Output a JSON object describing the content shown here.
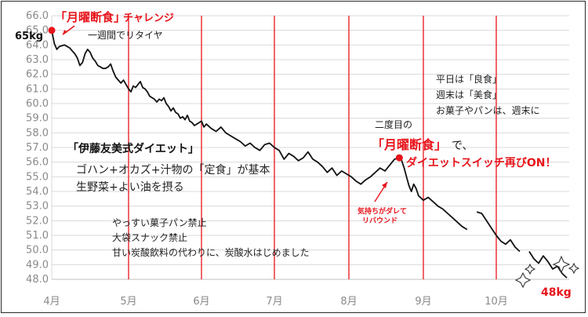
{
  "chart_data": {
    "type": "line",
    "title": "",
    "xlabel": "",
    "ylabel": "",
    "ylim": [
      48.0,
      66.0
    ],
    "ytick_step": 1.0,
    "x_months": [
      "4月",
      "5月",
      "6月",
      "7月",
      "8月",
      "9月",
      "10月"
    ],
    "month_markers_color": "#e8141b",
    "series_color": "#111111",
    "grid": true,
    "series": [
      {
        "points": [
          [
            "4/1",
            65.0
          ],
          [
            "4/2",
            64.1
          ],
          [
            "4/3",
            63.7
          ],
          [
            "4/4",
            63.9
          ],
          [
            "4/6",
            64.0
          ],
          [
            "4/7",
            63.9
          ],
          [
            "4/8",
            63.8
          ],
          [
            "4/9",
            63.6
          ],
          [
            "4/10",
            63.4
          ],
          [
            "4/11",
            63.1
          ],
          [
            "4/12",
            62.6
          ],
          [
            "4/13",
            62.8
          ],
          [
            "4/14",
            63.4
          ],
          [
            "4/15",
            63.7
          ],
          [
            "4/16",
            63.5
          ],
          [
            "4/17",
            63.1
          ],
          [
            "4/18",
            62.9
          ],
          [
            "4/19",
            62.6
          ],
          [
            "4/20",
            62.5
          ],
          [
            "4/21",
            62.4
          ],
          [
            "4/22",
            62.4
          ],
          [
            "4/23",
            62.5
          ],
          [
            "4/24",
            62.7
          ],
          [
            "4/25",
            62.2
          ],
          [
            "4/26",
            61.8
          ],
          [
            "4/27",
            61.6
          ],
          [
            "4/28",
            61.4
          ],
          [
            "4/29",
            61.6
          ],
          [
            "4/30",
            61.3
          ],
          [
            "5/1",
            61.0
          ],
          [
            "5/2",
            60.8
          ],
          [
            "5/3",
            61.2
          ],
          [
            "5/4",
            61.1
          ],
          [
            "5/5",
            61.3
          ],
          [
            "5/6",
            61.5
          ],
          [
            "5/7",
            61.1
          ],
          [
            "5/8",
            61.0
          ],
          [
            "5/9",
            60.8
          ],
          [
            "5/10",
            60.5
          ],
          [
            "5/11",
            60.4
          ],
          [
            "5/12",
            60.3
          ],
          [
            "5/13",
            60.1
          ],
          [
            "5/14",
            60.3
          ],
          [
            "5/15",
            60.2
          ],
          [
            "5/16",
            60.4
          ],
          [
            "5/17",
            60.0
          ],
          [
            "5/18",
            59.8
          ],
          [
            "5/19",
            59.5
          ],
          [
            "5/20",
            59.7
          ],
          [
            "5/21",
            59.4
          ],
          [
            "5/22",
            59.3
          ],
          [
            "5/23",
            59.0
          ],
          [
            "5/24",
            59.1
          ],
          [
            "5/25",
            58.9
          ],
          [
            "5/26",
            59.2
          ],
          [
            "5/27",
            58.8
          ],
          [
            "5/28",
            58.7
          ],
          [
            "5/29",
            58.5
          ],
          [
            "5/30",
            58.6
          ],
          [
            "6/1",
            58.8
          ],
          [
            "6/2",
            58.4
          ],
          [
            "6/3",
            58.6
          ],
          [
            "6/5",
            58.3
          ],
          [
            "6/7",
            58.1
          ],
          [
            "6/9",
            58.4
          ],
          [
            "6/11",
            58.0
          ],
          [
            "6/13",
            57.8
          ],
          [
            "6/15",
            57.6
          ],
          [
            "6/17",
            57.4
          ],
          [
            "6/19",
            57.1
          ],
          [
            "6/21",
            57.3
          ],
          [
            "6/23",
            57.0
          ],
          [
            "6/25",
            56.8
          ],
          [
            "6/27",
            57.2
          ],
          [
            "6/29",
            57.3
          ],
          [
            "7/1",
            57.0
          ],
          [
            "7/3",
            56.8
          ],
          [
            "7/5",
            56.2
          ],
          [
            "7/7",
            56.6
          ],
          [
            "7/9",
            56.4
          ],
          [
            "7/11",
            56.1
          ],
          [
            "7/13",
            56.3
          ],
          [
            "7/15",
            56.7
          ],
          [
            "7/17",
            56.2
          ],
          [
            "7/19",
            56.0
          ],
          [
            "7/21",
            55.7
          ],
          [
            "7/23",
            55.3
          ],
          [
            "7/25",
            55.6
          ],
          [
            "7/27",
            55.1
          ],
          [
            "7/29",
            55.4
          ],
          [
            "7/31",
            55.2
          ],
          [
            "8/2",
            55.0
          ],
          [
            "8/4",
            54.7
          ],
          [
            "8/6",
            54.5
          ],
          [
            "8/8",
            54.8
          ],
          [
            "8/10",
            55.0
          ],
          [
            "8/12",
            55.3
          ],
          [
            "8/14",
            55.6
          ],
          [
            "8/16",
            55.4
          ],
          [
            "8/18",
            55.8
          ],
          [
            "8/20",
            56.2
          ],
          [
            "8/22",
            56.3
          ],
          [
            "8/23",
            56.1
          ],
          [
            "8/24",
            55.6
          ],
          [
            "8/25",
            55.0
          ],
          [
            "8/26",
            54.4
          ],
          [
            "8/27",
            54.0
          ],
          [
            "8/28",
            54.5
          ],
          [
            "8/29",
            54.2
          ],
          [
            "8/30",
            53.7
          ],
          [
            "9/1",
            53.4
          ],
          [
            "9/3",
            53.6
          ],
          [
            "9/5",
            53.3
          ],
          [
            "9/7",
            53.0
          ],
          [
            "9/9",
            52.8
          ],
          [
            "9/11",
            52.5
          ],
          [
            "9/13",
            52.2
          ],
          [
            "9/15",
            51.9
          ],
          [
            "9/17",
            51.6
          ],
          [
            "9/19",
            51.4
          ]
        ]
      },
      {
        "points": [
          [
            "9/23",
            52.6
          ],
          [
            "9/25",
            52.5
          ],
          [
            "9/27",
            52.0
          ],
          [
            "9/29",
            51.5
          ],
          [
            "10/1",
            51.0
          ],
          [
            "10/3",
            50.6
          ],
          [
            "10/5",
            50.4
          ],
          [
            "10/7",
            50.7
          ],
          [
            "10/9",
            50.2
          ],
          [
            "10/11",
            49.9
          ]
        ]
      },
      {
        "points": [
          [
            "10/15",
            49.9
          ],
          [
            "10/17",
            49.4
          ],
          [
            "10/19",
            49.1
          ],
          [
            "10/21",
            49.6
          ],
          [
            "10/23",
            49.2
          ],
          [
            "10/25",
            48.7
          ],
          [
            "10/27",
            48.9
          ],
          [
            "10/29",
            48.4
          ],
          [
            "10/31",
            48.1
          ]
        ]
      }
    ],
    "start_marker": {
      "date": "4/1",
      "value": 65.0
    },
    "restart_marker": {
      "date": "8/22",
      "value": 56.3
    }
  },
  "annotations": {
    "start_title_bracket": "「月曜断食」",
    "start_title_rest": "チャレンジ",
    "start_weight": "65kg",
    "first_week": "一週間でリタイヤ",
    "weekday_good": "平日は「良食」",
    "weekend_beauty": "週末は「美食」",
    "sweets": "お菓子やパンは、週末に",
    "second_time": "二度目の",
    "getsuyou_bracket": "「月曜断食」",
    "getsuyou_suffix": "で、",
    "diet_switch": "ダイエットスイッチ再びON！",
    "ito_title": "「伊藤友美式ダイエット」",
    "ito_line1": "ゴハン+オカズ+汁物の「定食」が基本",
    "ito_line2": "生野菜+よい油を摂る",
    "rebound_line1": "気持ちがダレて",
    "rebound_line2": "リバウンド",
    "ban_bread": "やっすい菓子パン禁止",
    "ban_snack": "大袋スナック禁止",
    "soda": "甘い炭酸飲料の代わりに、炭酸水はじめました",
    "end_weight": "48kg"
  }
}
